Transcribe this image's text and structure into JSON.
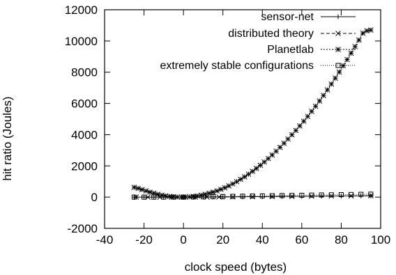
{
  "chart_data": {
    "type": "scatter",
    "xlabel": "clock speed (bytes)",
    "ylabel": "hit ratio (Joules)",
    "xlim": [
      -40,
      100
    ],
    "ylim": [
      -2000,
      12000
    ],
    "x_ticks": [
      -40,
      -20,
      0,
      20,
      40,
      60,
      80,
      100
    ],
    "y_ticks": [
      -2000,
      0,
      2000,
      4000,
      6000,
      8000,
      10000,
      12000
    ],
    "grid": false,
    "legend_position": "top-right",
    "series": [
      {
        "name": "sensor-net",
        "marker": "plus",
        "line": "solid",
        "x": [
          -25,
          -20,
          -15,
          -10,
          -5,
          0,
          5,
          10,
          15,
          20,
          30,
          40,
          50,
          60,
          70,
          80,
          90,
          95
        ],
        "y": [
          0,
          0,
          0,
          0,
          0,
          0,
          0,
          0,
          10,
          15,
          20,
          30,
          40,
          50,
          60,
          70,
          80,
          90
        ]
      },
      {
        "name": "distributed theory",
        "marker": "x",
        "line": "dashed",
        "x": [
          -24,
          -18,
          -12,
          -6,
          0,
          6,
          12,
          18,
          25,
          35,
          45,
          55,
          65,
          75,
          85,
          95
        ],
        "y": [
          0,
          0,
          0,
          0,
          0,
          0,
          0,
          10,
          20,
          30,
          40,
          50,
          60,
          70,
          80,
          90
        ]
      },
      {
        "name": "Planetlab",
        "marker": "star",
        "line": "dotted",
        "x": [
          -25,
          -23,
          -21,
          -19,
          -17,
          -15,
          -13,
          -11,
          -9,
          -7,
          -5,
          -3,
          -1,
          1,
          3,
          5,
          7,
          9,
          11,
          13,
          15,
          17,
          19,
          21,
          23,
          25,
          27,
          29,
          31,
          33,
          35,
          37,
          39,
          41,
          43,
          45,
          47,
          49,
          51,
          53,
          55,
          57,
          59,
          61,
          63,
          65,
          67,
          69,
          71,
          73,
          75,
          77,
          79,
          81,
          83,
          85,
          87,
          89,
          91,
          93,
          95
        ],
        "y": [
          625,
          560,
          480,
          400,
          320,
          250,
          180,
          125,
          80,
          45,
          20,
          5,
          0,
          5,
          20,
          45,
          80,
          125,
          180,
          245,
          320,
          400,
          500,
          600,
          720,
          850,
          990,
          1140,
          1300,
          1470,
          1650,
          1840,
          2040,
          2250,
          2470,
          2700,
          2940,
          3190,
          3450,
          3720,
          3990,
          4270,
          4560,
          4860,
          5170,
          5490,
          5820,
          6160,
          6510,
          6870,
          7240,
          7620,
          8010,
          8410,
          8810,
          9220,
          9640,
          10060,
          10500,
          10650,
          10700
        ]
      },
      {
        "name": "extremely stable configurations",
        "marker": "square",
        "line": "dotted-fine",
        "x": [
          -25,
          -20,
          -15,
          -10,
          -5,
          0,
          5,
          10,
          15,
          20,
          25,
          30,
          35,
          40,
          45,
          50,
          55,
          60,
          65,
          70,
          75,
          80,
          85,
          90,
          95
        ],
        "y": [
          0,
          0,
          0,
          0,
          0,
          0,
          10,
          20,
          30,
          40,
          50,
          60,
          70,
          80,
          90,
          100,
          110,
          120,
          130,
          140,
          150,
          160,
          170,
          180,
          190
        ]
      }
    ]
  }
}
